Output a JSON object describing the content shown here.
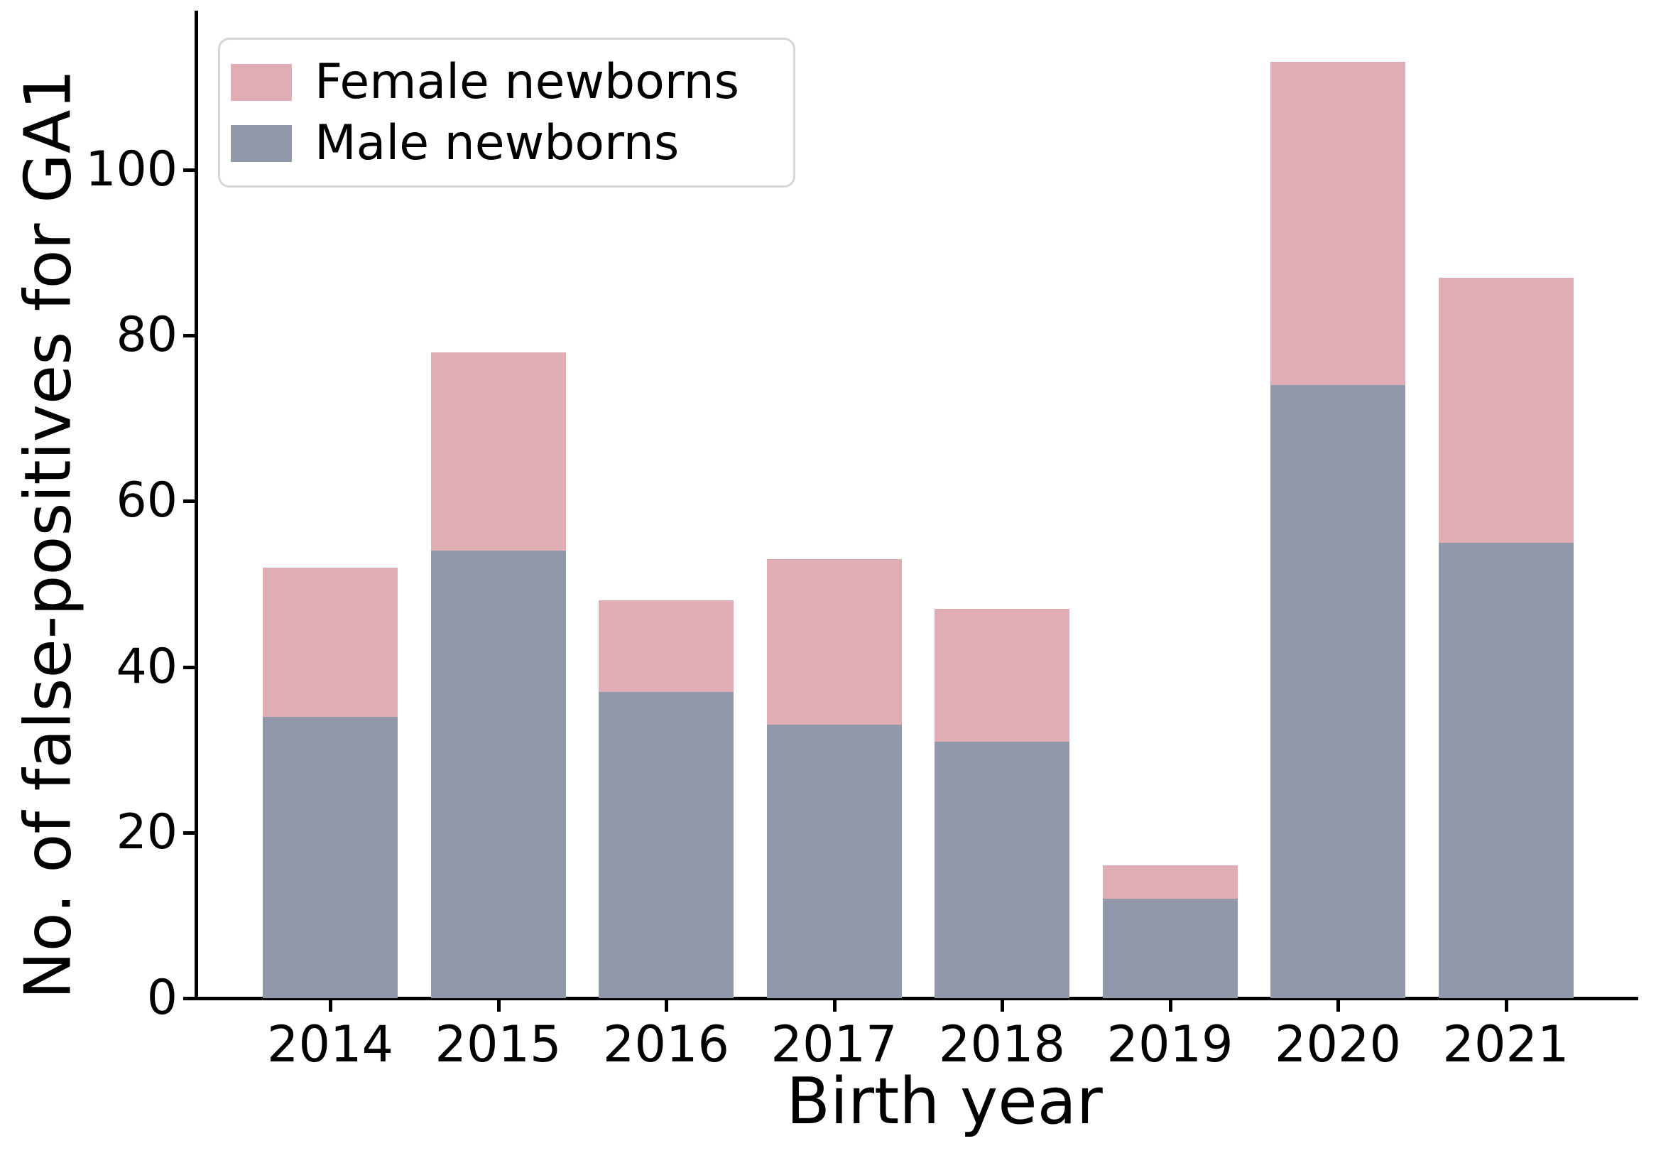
{
  "figure": {
    "background": "#ffffff",
    "text_color": "#000000",
    "axis_color": "#000000"
  },
  "chart_data": {
    "type": "bar",
    "stacked": true,
    "title": "",
    "xlabel": "Birth year",
    "ylabel": "No. of false-positives for GA1",
    "categories": [
      "2014",
      "2015",
      "2016",
      "2017",
      "2018",
      "2019",
      "2020",
      "2021"
    ],
    "series": [
      {
        "name": "Female newborns",
        "color": "#dfadb3",
        "values": [
          18,
          24,
          11,
          20,
          16,
          4,
          39,
          32
        ]
      },
      {
        "name": "Male newborns",
        "color": "#9198aa",
        "values": [
          34,
          54,
          37,
          33,
          31,
          12,
          74,
          55
        ]
      }
    ],
    "totals": [
      52,
      78,
      48,
      53,
      47,
      16,
      113,
      87
    ],
    "yticks": [
      0,
      20,
      40,
      60,
      80,
      100
    ],
    "ylim": [
      0,
      119
    ],
    "grid": false,
    "legend_position": "upper left"
  }
}
